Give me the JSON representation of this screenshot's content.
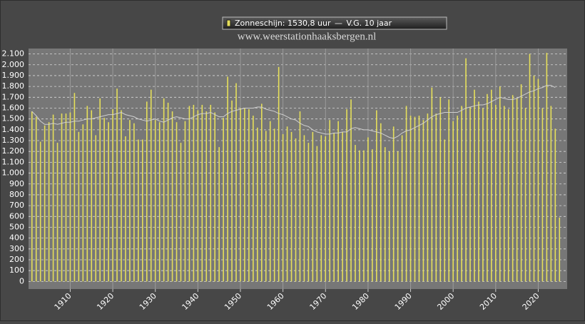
{
  "chart_data": {
    "type": "bar",
    "subtitle": "www.weerstationhaaksbergen.nl",
    "x": [
      1901,
      1902,
      1903,
      1904,
      1905,
      1906,
      1907,
      1908,
      1909,
      1910,
      1911,
      1912,
      1913,
      1914,
      1915,
      1916,
      1917,
      1918,
      1919,
      1920,
      1921,
      1922,
      1923,
      1924,
      1925,
      1926,
      1927,
      1928,
      1929,
      1930,
      1931,
      1932,
      1933,
      1934,
      1935,
      1936,
      1937,
      1938,
      1939,
      1940,
      1941,
      1942,
      1943,
      1944,
      1945,
      1946,
      1947,
      1948,
      1949,
      1950,
      1951,
      1952,
      1953,
      1954,
      1955,
      1956,
      1957,
      1958,
      1959,
      1960,
      1961,
      1962,
      1963,
      1964,
      1965,
      1966,
      1967,
      1968,
      1969,
      1970,
      1971,
      1972,
      1973,
      1974,
      1975,
      1976,
      1977,
      1978,
      1979,
      1980,
      1981,
      1982,
      1983,
      1984,
      1985,
      1986,
      1987,
      1988,
      1989,
      1990,
      1991,
      1992,
      1993,
      1994,
      1995,
      1996,
      1997,
      1998,
      1999,
      2000,
      2001,
      2002,
      2003,
      2004,
      2005,
      2006,
      2007,
      2008,
      2009,
      2010,
      2011,
      2012,
      2013,
      2014,
      2015,
      2016,
      2017,
      2018,
      2019,
      2020,
      2021,
      2022,
      2023,
      2024,
      2025
    ],
    "series": [
      {
        "name": "Zonneschijn: 1530,8 uur",
        "color": "#e6df5a",
        "values": [
          1570,
          1520,
          1290,
          1440,
          1470,
          1540,
          1280,
          1550,
          1550,
          1560,
          1740,
          1380,
          1450,
          1620,
          1580,
          1350,
          1690,
          1510,
          1470,
          1590,
          1780,
          1580,
          1340,
          1490,
          1460,
          1310,
          1310,
          1660,
          1770,
          1490,
          1470,
          1690,
          1650,
          1570,
          1470,
          1280,
          1480,
          1620,
          1630,
          1580,
          1630,
          1570,
          1630,
          1560,
          1240,
          1510,
          1890,
          1670,
          1830,
          1600,
          1600,
          1590,
          1530,
          1420,
          1640,
          1390,
          1480,
          1410,
          1980,
          1360,
          1430,
          1380,
          1320,
          1570,
          1350,
          1280,
          1380,
          1250,
          1350,
          1340,
          1490,
          1370,
          1480,
          1380,
          1590,
          1680,
          1260,
          1210,
          1210,
          1330,
          1220,
          1580,
          1460,
          1240,
          1200,
          1430,
          1200,
          1350,
          1620,
          1530,
          1520,
          1530,
          1490,
          1550,
          1790,
          1550,
          1700,
          1310,
          1680,
          1480,
          1530,
          1620,
          2060,
          1610,
          1770,
          1660,
          1600,
          1730,
          1770,
          1630,
          1800,
          1620,
          1590,
          1720,
          1690,
          1820,
          1600,
          2100,
          1900,
          1870,
          1600,
          2110,
          1620,
          1410,
          590
        ]
      },
      {
        "name": "V.G. 10 jaar",
        "color": "#d0d0d0",
        "type": "line",
        "values": [
          1570,
          1530,
          1480,
          1450,
          1450,
          1460,
          1450,
          1460,
          1470,
          1470,
          1480,
          1480,
          1490,
          1500,
          1500,
          1510,
          1520,
          1530,
          1540,
          1540,
          1550,
          1560,
          1540,
          1530,
          1520,
          1500,
          1490,
          1480,
          1490,
          1500,
          1480,
          1470,
          1490,
          1510,
          1520,
          1510,
          1500,
          1500,
          1520,
          1540,
          1550,
          1550,
          1560,
          1540,
          1520,
          1520,
          1550,
          1570,
          1580,
          1590,
          1600,
          1600,
          1600,
          1610,
          1610,
          1590,
          1580,
          1570,
          1550,
          1540,
          1520,
          1500,
          1490,
          1460,
          1440,
          1430,
          1400,
          1380,
          1370,
          1360,
          1360,
          1370,
          1370,
          1380,
          1380,
          1410,
          1420,
          1410,
          1400,
          1400,
          1390,
          1380,
          1370,
          1350,
          1330,
          1320,
          1340,
          1370,
          1390,
          1400,
          1420,
          1440,
          1460,
          1490,
          1520,
          1540,
          1550,
          1560,
          1560,
          1560,
          1560,
          1580,
          1600,
          1610,
          1620,
          1630,
          1630,
          1640,
          1660,
          1680,
          1700,
          1690,
          1680,
          1680,
          1690,
          1710,
          1730,
          1750,
          1760,
          1780,
          1790,
          1810,
          1810,
          1790,
          null
        ]
      }
    ],
    "xlim": [
      1900.2,
      2026.8
    ],
    "xticks": [
      1910,
      1920,
      1930,
      1940,
      1950,
      1960,
      1970,
      1980,
      1990,
      2000,
      2010,
      2020
    ],
    "ylim": [
      -70,
      2150
    ],
    "yticks": [
      0,
      100,
      200,
      300,
      400,
      500,
      600,
      700,
      800,
      900,
      {
        "value": 1000,
        "label": "1.000"
      },
      {
        "value": 1100,
        "label": "1.100"
      },
      {
        "value": 1200,
        "label": "1.200"
      },
      {
        "value": 1300,
        "label": "1.300"
      },
      {
        "value": 1400,
        "label": "1.400"
      },
      {
        "value": 1500,
        "label": "1.500"
      },
      {
        "value": 1600,
        "label": "1.600"
      },
      {
        "value": 1700,
        "label": "1.700"
      },
      {
        "value": 1800,
        "label": "1.800"
      },
      {
        "value": 1900,
        "label": "1.900"
      },
      {
        "value": 2000,
        "label": "2.000"
      },
      {
        "value": 2100,
        "label": "2.100"
      }
    ],
    "grid": true
  }
}
